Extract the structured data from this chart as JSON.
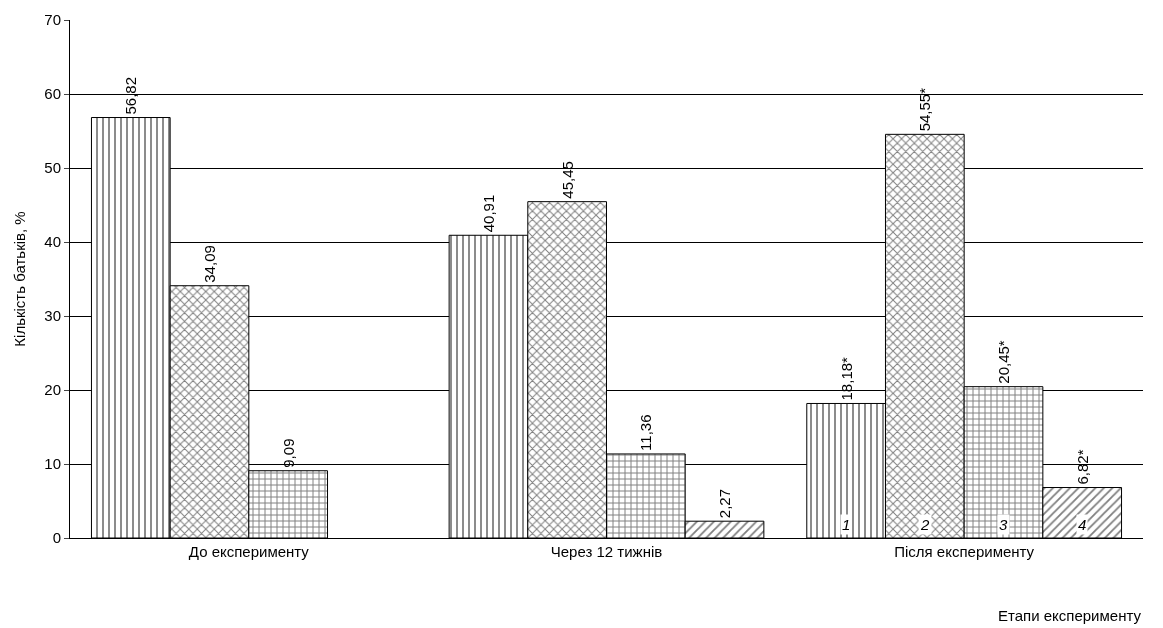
{
  "chart_data": {
    "type": "bar",
    "xlabel": "Етапи експерименту",
    "ylabel": "Кількість батьків, %",
    "categories": [
      "До експерименту",
      "Через 12 тижнів",
      "Після експерименту"
    ],
    "series": [
      {
        "name": "1",
        "color": "#000000",
        "values": [
          56.82,
          40.91,
          18.18
        ],
        "value_labels": [
          "56,82",
          "40,91",
          "18,18*"
        ]
      },
      {
        "name": "2",
        "color": "#000000",
        "values": [
          34.09,
          45.45,
          54.55
        ],
        "value_labels": [
          "34,09",
          "45,45",
          "54,55*"
        ]
      },
      {
        "name": "3",
        "color": "#000000",
        "values": [
          9.09,
          11.36,
          20.45
        ],
        "value_labels": [
          "9,09",
          "11,36",
          "20,45*"
        ]
      },
      {
        "name": "4",
        "color": "#000000",
        "values": [
          null,
          2.27,
          6.82
        ],
        "value_labels": [
          null,
          "2,27",
          "6,82*"
        ]
      }
    ],
    "ylim": [
      0,
      70
    ],
    "yticks": [
      0,
      10,
      20,
      30,
      40,
      50,
      60,
      70
    ],
    "grid": "y",
    "legend": false
  }
}
